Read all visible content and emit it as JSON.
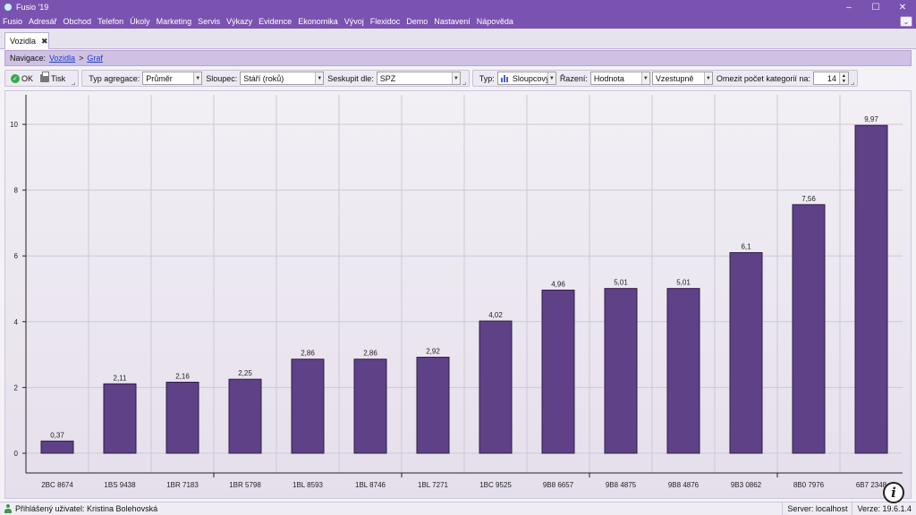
{
  "window": {
    "title": "Fusio '19",
    "minimize": "–",
    "maximize": "☐",
    "close": "✕"
  },
  "menu": [
    "Fusio",
    "Adresář",
    "Obchod",
    "Telefon",
    "Úkoly",
    "Marketing",
    "Servis",
    "Výkazy",
    "Evidence",
    "Ekonomika",
    "Vývoj",
    "Flexidoc",
    "Demo",
    "Nastavení",
    "Nápověda"
  ],
  "menu_expand": "⌄",
  "tab": {
    "label": "Vozidla",
    "close": "✖"
  },
  "navigation": {
    "label": "Navigace:",
    "link1": "Vozidla",
    "sep": ">",
    "link2": "Graf"
  },
  "toolbar": {
    "ok": "OK",
    "print": "Tisk",
    "aggregation_label": "Typ agregace:",
    "aggregation_value": "Průměr",
    "column_label": "Sloupec:",
    "column_value": "Stáří (roků)",
    "group_label": "Seskupit dle:",
    "group_value": "SPZ",
    "type_label": "Typ:",
    "type_value": "Sloupcový",
    "sort_label": "Řazení:",
    "sort_value": "Hodnota",
    "order_value": "Vzestupně",
    "limit_label": "Omezit počet kategorií na:",
    "limit_value": "14"
  },
  "chart_data": {
    "type": "bar",
    "categories": [
      "2BC 8674",
      "1BS 9438",
      "1BR 7183",
      "1BR 5798",
      "1BL 8593",
      "1BL 8746",
      "1BL 7271",
      "1BC 9525",
      "9B8 6657",
      "9B8 4875",
      "9B8 4876",
      "9B3 0862",
      "8B0 7976",
      "6B7 2348"
    ],
    "values": [
      0.37,
      2.11,
      2.16,
      2.25,
      2.86,
      2.86,
      2.92,
      4.02,
      4.96,
      5.01,
      5.01,
      6.1,
      7.56,
      9.97
    ],
    "value_labels": [
      "0,37",
      "2,11",
      "2,16",
      "2,25",
      "2,86",
      "2,86",
      "2,92",
      "4,02",
      "4,96",
      "5,01",
      "5,01",
      "6,1",
      "7,56",
      "9,97"
    ],
    "yticks": [
      0,
      2,
      4,
      6,
      8,
      10
    ],
    "ylim": [
      -0.6,
      10.9
    ],
    "bar_color": "#5f4188",
    "grid": true
  },
  "status": {
    "user": "Přihlášený uživatel: Kristina Bolehovská",
    "server": "Server: localhost",
    "version": "Verze: 19.6.1.4"
  },
  "info_icon": "i"
}
